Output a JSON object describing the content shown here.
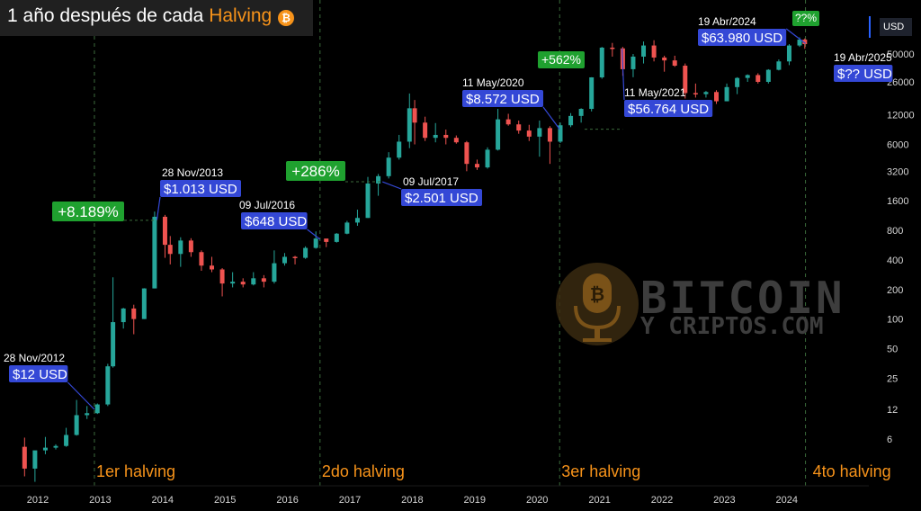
{
  "title": {
    "prefix": "1 año después de cada",
    "accent": "Halving",
    "badge": "₿"
  },
  "currency": "USD",
  "watermark": {
    "line1": "BITCOIN",
    "line2": "Y CRIPTOS.COM"
  },
  "colors": {
    "up": "#26a69a",
    "down": "#ef5350",
    "accent": "#f7931a",
    "label_bg": "#3448d6",
    "pct_bg": "#1fa12f",
    "guide": "#3b6a3b"
  },
  "chart_data": {
    "type": "candlestick",
    "title": "1 año después de cada Halving",
    "y_scale": "log",
    "ylim": [
      2.5,
      90000
    ],
    "x_range": [
      "2011-09",
      "2024-10"
    ],
    "x_ticks": [
      "2012",
      "2013",
      "2014",
      "2015",
      "2016",
      "2017",
      "2018",
      "2019",
      "2020",
      "2021",
      "2022",
      "2023",
      "2024"
    ],
    "y_ticks": [
      6,
      12,
      25,
      50,
      100,
      200,
      400,
      800,
      1600,
      3200,
      6000,
      12000,
      26000,
      50000
    ],
    "candles": [
      {
        "d": "2011-10",
        "o": 5.0,
        "h": 6.2,
        "l": 2.5,
        "c": 3.0
      },
      {
        "d": "2011-12",
        "o": 3.0,
        "h": 4.5,
        "l": 2.2,
        "c": 4.6
      },
      {
        "d": "2012-02",
        "o": 4.6,
        "h": 6.3,
        "l": 4.2,
        "c": 4.9
      },
      {
        "d": "2012-04",
        "o": 4.9,
        "h": 5.3,
        "l": 4.7,
        "c": 5.1
      },
      {
        "d": "2012-06",
        "o": 5.1,
        "h": 7.8,
        "l": 5.0,
        "c": 6.6
      },
      {
        "d": "2012-08",
        "o": 6.6,
        "h": 15.0,
        "l": 6.5,
        "c": 10.5
      },
      {
        "d": "2012-10",
        "o": 10.5,
        "h": 13.0,
        "l": 9.6,
        "c": 11.0
      },
      {
        "d": "2012-12",
        "o": 11.0,
        "h": 13.8,
        "l": 10.8,
        "c": 13.5
      },
      {
        "d": "2013-02",
        "o": 13.5,
        "h": 35.0,
        "l": 13.0,
        "c": 33.0
      },
      {
        "d": "2013-03",
        "o": 33.0,
        "h": 266,
        "l": 32,
        "c": 93
      },
      {
        "d": "2013-05",
        "o": 93,
        "h": 130,
        "l": 80,
        "c": 128
      },
      {
        "d": "2013-07",
        "o": 128,
        "h": 140,
        "l": 70,
        "c": 100
      },
      {
        "d": "2013-09",
        "o": 100,
        "h": 206,
        "l": 100,
        "c": 205
      },
      {
        "d": "2013-11",
        "o": 205,
        "h": 1242,
        "l": 205,
        "c": 1100
      },
      {
        "d": "2014-01",
        "o": 1100,
        "h": 1150,
        "l": 420,
        "c": 570
      },
      {
        "d": "2014-02",
        "o": 570,
        "h": 700,
        "l": 360,
        "c": 460
      },
      {
        "d": "2014-04",
        "o": 460,
        "h": 680,
        "l": 340,
        "c": 630
      },
      {
        "d": "2014-06",
        "o": 630,
        "h": 665,
        "l": 430,
        "c": 480
      },
      {
        "d": "2014-08",
        "o": 480,
        "h": 500,
        "l": 310,
        "c": 350
      },
      {
        "d": "2014-10",
        "o": 350,
        "h": 430,
        "l": 300,
        "c": 320
      },
      {
        "d": "2014-12",
        "o": 320,
        "h": 330,
        "l": 170,
        "c": 230
      },
      {
        "d": "2015-02",
        "o": 230,
        "h": 300,
        "l": 210,
        "c": 240
      },
      {
        "d": "2015-04",
        "o": 240,
        "h": 260,
        "l": 210,
        "c": 225
      },
      {
        "d": "2015-06",
        "o": 225,
        "h": 300,
        "l": 220,
        "c": 260
      },
      {
        "d": "2015-08",
        "o": 260,
        "h": 280,
        "l": 210,
        "c": 240
      },
      {
        "d": "2015-10",
        "o": 240,
        "h": 500,
        "l": 230,
        "c": 370
      },
      {
        "d": "2015-12",
        "o": 370,
        "h": 470,
        "l": 350,
        "c": 430
      },
      {
        "d": "2016-02",
        "o": 430,
        "h": 440,
        "l": 360,
        "c": 420
      },
      {
        "d": "2016-04",
        "o": 420,
        "h": 550,
        "l": 410,
        "c": 530
      },
      {
        "d": "2016-06",
        "o": 530,
        "h": 780,
        "l": 520,
        "c": 660
      },
      {
        "d": "2016-08",
        "o": 660,
        "h": 620,
        "l": 540,
        "c": 610
      },
      {
        "d": "2016-10",
        "o": 610,
        "h": 750,
        "l": 600,
        "c": 740
      },
      {
        "d": "2016-12",
        "o": 740,
        "h": 1000,
        "l": 730,
        "c": 960
      },
      {
        "d": "2017-02",
        "o": 960,
        "h": 1300,
        "l": 890,
        "c": 1070
      },
      {
        "d": "2017-04",
        "o": 1070,
        "h": 2800,
        "l": 1070,
        "c": 2400
      },
      {
        "d": "2017-06",
        "o": 2400,
        "h": 3000,
        "l": 1800,
        "c": 2850
      },
      {
        "d": "2017-08",
        "o": 2850,
        "h": 5000,
        "l": 2700,
        "c": 4400
      },
      {
        "d": "2017-10",
        "o": 4400,
        "h": 7500,
        "l": 4200,
        "c": 6400
      },
      {
        "d": "2017-12",
        "o": 6400,
        "h": 19800,
        "l": 5500,
        "c": 14000
      },
      {
        "d": "2018-01",
        "o": 14000,
        "h": 17000,
        "l": 6000,
        "c": 10000
      },
      {
        "d": "2018-03",
        "o": 10000,
        "h": 11500,
        "l": 6500,
        "c": 7000
      },
      {
        "d": "2018-05",
        "o": 7000,
        "h": 9900,
        "l": 6300,
        "c": 7500
      },
      {
        "d": "2018-07",
        "o": 7500,
        "h": 8500,
        "l": 6000,
        "c": 7000
      },
      {
        "d": "2018-09",
        "o": 7000,
        "h": 7400,
        "l": 6100,
        "c": 6300
      },
      {
        "d": "2018-11",
        "o": 6300,
        "h": 6500,
        "l": 3200,
        "c": 3800
      },
      {
        "d": "2019-01",
        "o": 3800,
        "h": 4200,
        "l": 3300,
        "c": 3500
      },
      {
        "d": "2019-03",
        "o": 3500,
        "h": 5600,
        "l": 3400,
        "c": 5300
      },
      {
        "d": "2019-05",
        "o": 5300,
        "h": 13800,
        "l": 5200,
        "c": 10800
      },
      {
        "d": "2019-07",
        "o": 10800,
        "h": 12300,
        "l": 9300,
        "c": 9600
      },
      {
        "d": "2019-09",
        "o": 9600,
        "h": 10500,
        "l": 7700,
        "c": 8300
      },
      {
        "d": "2019-11",
        "o": 8300,
        "h": 9500,
        "l": 6500,
        "c": 7200
      },
      {
        "d": "2020-01",
        "o": 7200,
        "h": 10500,
        "l": 4500,
        "c": 8800
      },
      {
        "d": "2020-03",
        "o": 8800,
        "h": 9200,
        "l": 3800,
        "c": 6400
      },
      {
        "d": "2020-05",
        "o": 6400,
        "h": 10000,
        "l": 6200,
        "c": 9400
      },
      {
        "d": "2020-07",
        "o": 9400,
        "h": 12500,
        "l": 9000,
        "c": 11700
      },
      {
        "d": "2020-09",
        "o": 11700,
        "h": 14000,
        "l": 10000,
        "c": 13800
      },
      {
        "d": "2020-11",
        "o": 13800,
        "h": 29000,
        "l": 13000,
        "c": 28900
      },
      {
        "d": "2021-01",
        "o": 28900,
        "h": 59000,
        "l": 28000,
        "c": 58000
      },
      {
        "d": "2021-03",
        "o": 58000,
        "h": 64800,
        "l": 47000,
        "c": 57000
      },
      {
        "d": "2021-05",
        "o": 57000,
        "h": 59000,
        "l": 30000,
        "c": 35000
      },
      {
        "d": "2021-07",
        "o": 35000,
        "h": 50000,
        "l": 29000,
        "c": 47000
      },
      {
        "d": "2021-09",
        "o": 47000,
        "h": 67000,
        "l": 40000,
        "c": 61000
      },
      {
        "d": "2021-11",
        "o": 61000,
        "h": 69000,
        "l": 42000,
        "c": 46000
      },
      {
        "d": "2022-01",
        "o": 46000,
        "h": 48000,
        "l": 33000,
        "c": 43000
      },
      {
        "d": "2022-03",
        "o": 43000,
        "h": 48000,
        "l": 37000,
        "c": 38000
      },
      {
        "d": "2022-05",
        "o": 38000,
        "h": 40000,
        "l": 17600,
        "c": 20000
      },
      {
        "d": "2022-07",
        "o": 20000,
        "h": 25000,
        "l": 18000,
        "c": 19500
      },
      {
        "d": "2022-09",
        "o": 19500,
        "h": 21000,
        "l": 18000,
        "c": 20500
      },
      {
        "d": "2022-11",
        "o": 20500,
        "h": 21400,
        "l": 15500,
        "c": 16500
      },
      {
        "d": "2023-01",
        "o": 16500,
        "h": 25000,
        "l": 16500,
        "c": 23000
      },
      {
        "d": "2023-03",
        "o": 23000,
        "h": 29000,
        "l": 19500,
        "c": 28500
      },
      {
        "d": "2023-05",
        "o": 28500,
        "h": 31000,
        "l": 26000,
        "c": 30500
      },
      {
        "d": "2023-07",
        "o": 30500,
        "h": 31800,
        "l": 25000,
        "c": 26000
      },
      {
        "d": "2023-09",
        "o": 26000,
        "h": 35000,
        "l": 25000,
        "c": 34500
      },
      {
        "d": "2023-11",
        "o": 34500,
        "h": 44000,
        "l": 34000,
        "c": 42000
      },
      {
        "d": "2024-01",
        "o": 42000,
        "h": 63000,
        "l": 38500,
        "c": 61000
      },
      {
        "d": "2024-03",
        "o": 61000,
        "h": 73800,
        "l": 59000,
        "c": 70000
      },
      {
        "d": "2024-04",
        "o": 70000,
        "h": 72000,
        "l": 56500,
        "c": 63000
      }
    ],
    "halvings": [
      {
        "label": "1er halving",
        "date": "2012-11-28"
      },
      {
        "label": "2do halving",
        "date": "2016-07-09"
      },
      {
        "label": "3er halving",
        "date": "2020-05-11"
      },
      {
        "label": "4to halving",
        "date": "2024-04-19"
      }
    ],
    "annotations": [
      {
        "date": "28 Nov/2012",
        "price": "$12 USD",
        "at": "2012-11-28",
        "value": 12
      },
      {
        "date": "28 Nov/2013",
        "price": "$1.013 USD",
        "at": "2013-11-28",
        "value": 1013
      },
      {
        "date": "09 Jul/2016",
        "price": "$648 USD",
        "at": "2016-07-09",
        "value": 648
      },
      {
        "date": "09 Jul/2017",
        "price": "$2.501 USD",
        "at": "2017-07-09",
        "value": 2501
      },
      {
        "date": "11 May/2020",
        "price": "$8.572 USD",
        "at": "2020-05-11",
        "value": 8572
      },
      {
        "date": "11 May/2021",
        "price": "$56.764 USD",
        "at": "2021-05-11",
        "value": 56764
      },
      {
        "date": "19 Abr/2024",
        "price": "$63.980 USD",
        "at": "2024-04-19",
        "value": 63980
      },
      {
        "date": "19 Abr/2025",
        "price": "$?? USD",
        "at": "2025-04-19",
        "value": null
      }
    ],
    "gains": [
      "+8.189%",
      "+286%",
      "+562%",
      "??%"
    ]
  }
}
